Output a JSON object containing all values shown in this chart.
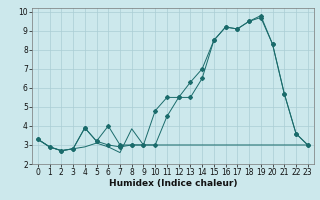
{
  "title": "",
  "xlabel": "Humidex (Indice chaleur)",
  "background_color": "#cce8ec",
  "grid_color": "#aacdd4",
  "line_color": "#1a6b6b",
  "xlim": [
    -0.5,
    23.5
  ],
  "ylim": [
    2,
    10.2
  ],
  "xticks": [
    0,
    1,
    2,
    3,
    4,
    5,
    6,
    7,
    8,
    9,
    10,
    11,
    12,
    13,
    14,
    15,
    16,
    17,
    18,
    19,
    20,
    21,
    22,
    23
  ],
  "yticks": [
    2,
    3,
    4,
    5,
    6,
    7,
    8,
    9,
    10
  ],
  "series1_x": [
    0,
    1,
    2,
    3,
    4,
    5,
    6,
    7,
    8,
    9,
    10,
    11,
    12,
    13,
    14,
    15,
    16,
    17,
    18,
    19,
    20,
    21,
    22,
    23
  ],
  "series1_y": [
    3.3,
    2.9,
    2.7,
    2.8,
    2.9,
    3.1,
    2.9,
    2.6,
    3.85,
    3.0,
    3.0,
    3.0,
    3.0,
    3.0,
    3.0,
    3.0,
    3.0,
    3.0,
    3.0,
    3.0,
    3.0,
    3.0,
    3.0,
    3.0
  ],
  "series2_x": [
    0,
    1,
    2,
    3,
    4,
    5,
    6,
    7,
    8,
    9,
    10,
    11,
    12,
    13,
    14,
    15,
    16,
    17,
    18,
    19,
    20,
    21,
    22,
    23
  ],
  "series2_y": [
    3.3,
    2.9,
    2.7,
    2.8,
    3.9,
    3.2,
    4.0,
    3.0,
    3.0,
    3.0,
    4.8,
    5.5,
    5.5,
    6.3,
    7.0,
    8.5,
    9.2,
    9.1,
    9.5,
    9.8,
    8.3,
    5.7,
    3.6,
    3.0
  ],
  "series3_x": [
    0,
    1,
    2,
    3,
    4,
    5,
    6,
    7,
    8,
    9,
    10,
    11,
    12,
    13,
    14,
    15,
    16,
    17,
    18,
    19,
    20,
    21,
    22,
    23
  ],
  "series3_y": [
    3.3,
    2.9,
    2.7,
    2.8,
    3.9,
    3.2,
    3.0,
    2.9,
    3.0,
    3.0,
    3.0,
    4.5,
    5.5,
    5.5,
    6.5,
    8.5,
    9.2,
    9.1,
    9.5,
    9.7,
    8.3,
    5.7,
    3.6,
    3.0
  ],
  "tick_fontsize": 5.5,
  "xlabel_fontsize": 6.5
}
